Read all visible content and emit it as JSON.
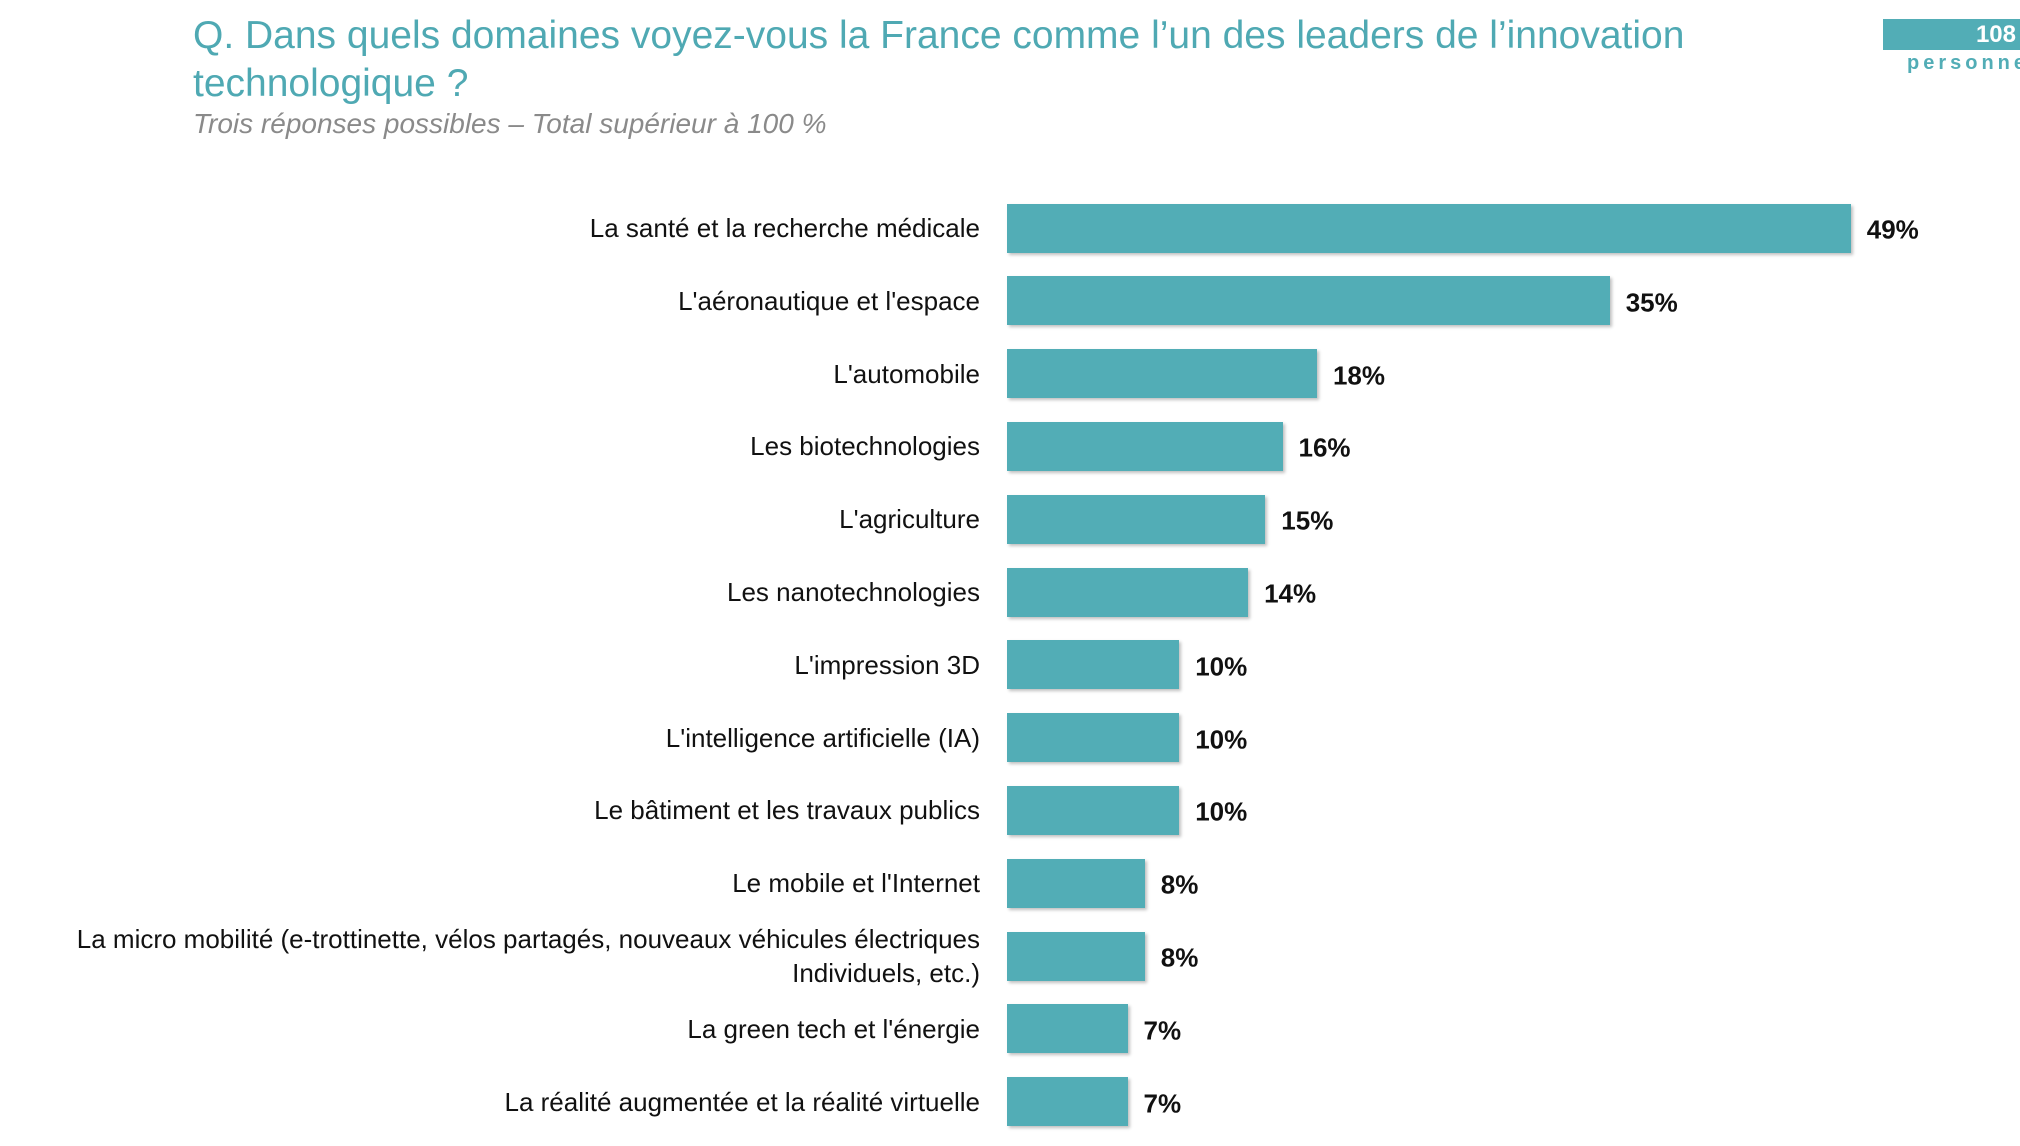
{
  "chart_data": {
    "type": "bar",
    "orientation": "horizontal",
    "title": "Q. Dans quels domaines voyez-vous la France comme l’un des leaders de l’innovation technologique ?",
    "subtitle": "Trois réponses possibles – Total supérieur à 100 %",
    "badge": {
      "number": "108",
      "text": "personne"
    },
    "categories": [
      "La santé et la recherche médicale",
      "L'aéronautique et l'espace",
      "L'automobile",
      "Les biotechnologies",
      "L'agriculture",
      "Les nanotechnologies",
      "L'impression 3D",
      "L'intelligence artificielle (IA)",
      "Le bâtiment et les travaux publics",
      "Le mobile et l'Internet",
      "La micro mobilité (e-trottinette, vélos partagés, nouveaux véhicules électriques\nIndividuels, etc.)",
      "La green tech et l'énergie",
      "La réalité augmentée et la réalité virtuelle"
    ],
    "values": [
      49,
      35,
      18,
      16,
      15,
      14,
      10,
      10,
      10,
      8,
      8,
      7,
      7
    ],
    "value_labels": [
      "49%",
      "35%",
      "18%",
      "16%",
      "15%",
      "14%",
      "10%",
      "10%",
      "10%",
      "8%",
      "8%",
      "7%",
      "7%"
    ],
    "color": "#52adb6"
  }
}
